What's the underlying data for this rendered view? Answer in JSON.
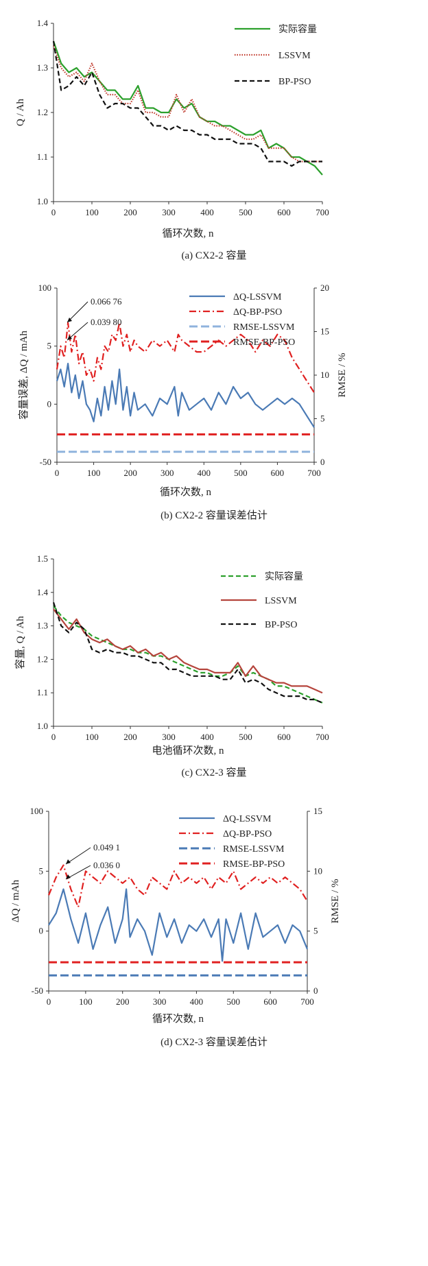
{
  "chart_data": [
    {
      "id": "a",
      "type": "line",
      "caption": "(a)  CX2-2 容量",
      "ylabel": "Q / Ah",
      "xlabel": "循环次数, n",
      "xlim": [
        0,
        700
      ],
      "ylim": [
        1.0,
        1.4
      ],
      "xticks": [
        "0",
        "100",
        "200",
        "300",
        "400",
        "500",
        "600",
        "700"
      ],
      "yticks": [
        "1.0",
        "1.1",
        "1.2",
        "1.3",
        "1.4"
      ],
      "series": [
        {
          "name": "实际容量",
          "color": "#2ca02c",
          "style": "solid",
          "x": [
            0,
            20,
            40,
            60,
            80,
            100,
            120,
            140,
            160,
            180,
            200,
            220,
            240,
            260,
            280,
            300,
            320,
            340,
            360,
            380,
            400,
            420,
            440,
            460,
            480,
            500,
            520,
            540,
            560,
            580,
            600,
            620,
            640,
            660,
            680,
            700
          ],
          "y": [
            1.36,
            1.31,
            1.29,
            1.3,
            1.28,
            1.29,
            1.27,
            1.25,
            1.25,
            1.23,
            1.23,
            1.26,
            1.21,
            1.21,
            1.2,
            1.2,
            1.23,
            1.21,
            1.22,
            1.19,
            1.18,
            1.18,
            1.17,
            1.17,
            1.16,
            1.15,
            1.15,
            1.16,
            1.12,
            1.13,
            1.12,
            1.1,
            1.1,
            1.09,
            1.08,
            1.06
          ]
        },
        {
          "name": "LSSVM",
          "color": "#c0392b",
          "style": "dotted",
          "x": [
            0,
            20,
            40,
            60,
            80,
            100,
            120,
            140,
            160,
            180,
            200,
            220,
            240,
            260,
            280,
            300,
            320,
            340,
            360,
            380,
            400,
            420,
            440,
            460,
            480,
            500,
            520,
            540,
            560,
            580,
            600,
            620,
            640,
            660,
            680,
            700
          ],
          "y": [
            1.35,
            1.3,
            1.28,
            1.29,
            1.27,
            1.31,
            1.27,
            1.24,
            1.24,
            1.22,
            1.22,
            1.25,
            1.2,
            1.2,
            1.19,
            1.19,
            1.24,
            1.2,
            1.23,
            1.19,
            1.18,
            1.17,
            1.17,
            1.16,
            1.15,
            1.14,
            1.14,
            1.15,
            1.12,
            1.12,
            1.12,
            1.1,
            1.09,
            1.09,
            1.09,
            1.09
          ]
        },
        {
          "name": "BP-PSO",
          "color": "#111111",
          "style": "dashed",
          "x": [
            0,
            20,
            40,
            60,
            80,
            100,
            120,
            140,
            160,
            180,
            200,
            220,
            240,
            260,
            280,
            300,
            320,
            340,
            360,
            380,
            400,
            420,
            440,
            460,
            480,
            500,
            520,
            540,
            560,
            580,
            600,
            620,
            640,
            660,
            680,
            700
          ],
          "y": [
            1.36,
            1.25,
            1.26,
            1.28,
            1.26,
            1.29,
            1.24,
            1.21,
            1.22,
            1.22,
            1.21,
            1.21,
            1.19,
            1.17,
            1.17,
            1.16,
            1.17,
            1.16,
            1.16,
            1.15,
            1.15,
            1.14,
            1.14,
            1.14,
            1.13,
            1.13,
            1.13,
            1.12,
            1.09,
            1.09,
            1.09,
            1.08,
            1.09,
            1.09,
            1.09,
            1.09
          ]
        }
      ]
    },
    {
      "id": "b",
      "type": "line",
      "caption": "(b)  CX2-2 容量误差估计",
      "ylabel": "容量误差, ΔQ / mAh",
      "y2label": "RMSE / %",
      "xlabel": "循环次数, n",
      "xlim": [
        0,
        700
      ],
      "ylim": [
        -50,
        100
      ],
      "y2lim": [
        0,
        20
      ],
      "xticks": [
        "0",
        "100",
        "200",
        "300",
        "400",
        "500",
        "600",
        "700"
      ],
      "yticks": [
        "-50",
        "0",
        "5",
        "100"
      ],
      "y2ticks": [
        "0",
        "5",
        "10",
        "15",
        "20"
      ],
      "annotations": [
        "0.066 76",
        "0.039 80"
      ],
      "series": [
        {
          "name": "ΔQ-LSSVM",
          "color": "#4a7ab5",
          "style": "solid",
          "axis": "left",
          "x": [
            0,
            10,
            20,
            30,
            40,
            50,
            60,
            70,
            80,
            90,
            100,
            110,
            120,
            130,
            140,
            150,
            160,
            170,
            180,
            190,
            200,
            210,
            220,
            240,
            260,
            280,
            300,
            320,
            330,
            340,
            360,
            380,
            400,
            420,
            440,
            460,
            480,
            500,
            520,
            540,
            560,
            580,
            600,
            620,
            640,
            660,
            680,
            700
          ],
          "y": [
            20,
            30,
            15,
            35,
            10,
            25,
            5,
            20,
            0,
            -5,
            -15,
            5,
            -10,
            15,
            -5,
            20,
            0,
            30,
            -5,
            15,
            -10,
            10,
            -5,
            0,
            -10,
            5,
            0,
            15,
            -10,
            10,
            -5,
            0,
            5,
            -5,
            10,
            0,
            15,
            5,
            10,
            0,
            -5,
            0,
            5,
            0,
            5,
            0,
            -10,
            -20
          ]
        },
        {
          "name": "ΔQ-BP-PSO",
          "color": "#e02020",
          "style": "dashdot",
          "axis": "left",
          "x": [
            0,
            10,
            20,
            30,
            40,
            50,
            60,
            70,
            80,
            90,
            100,
            110,
            120,
            130,
            140,
            150,
            160,
            170,
            180,
            190,
            200,
            210,
            220,
            240,
            260,
            280,
            300,
            320,
            330,
            340,
            360,
            380,
            400,
            420,
            440,
            460,
            480,
            500,
            520,
            540,
            560,
            580,
            600,
            620,
            640,
            660,
            680,
            700
          ],
          "y": [
            30,
            50,
            40,
            70,
            45,
            60,
            35,
            45,
            25,
            30,
            20,
            40,
            30,
            50,
            45,
            60,
            55,
            70,
            50,
            60,
            45,
            55,
            50,
            45,
            55,
            50,
            55,
            45,
            60,
            55,
            50,
            45,
            45,
            50,
            55,
            50,
            55,
            60,
            55,
            45,
            55,
            50,
            60,
            55,
            40,
            30,
            20,
            10
          ]
        },
        {
          "name": "RMSE-LSSVM",
          "color": "#8fb3dd",
          "style": "longdash",
          "axis": "right",
          "x": [
            0,
            700
          ],
          "y": [
            1.2,
            1.2
          ]
        },
        {
          "name": "RMSE-BP-PSO",
          "color": "#e02020",
          "style": "longdash",
          "axis": "right",
          "x": [
            0,
            700
          ],
          "y": [
            3.2,
            3.2
          ]
        }
      ]
    },
    {
      "id": "c",
      "type": "line",
      "caption": "(c)  CX2-3 容量",
      "ylabel": "容量, Q / Ah",
      "xlabel": "电池循环次数, n",
      "xlim": [
        0,
        700
      ],
      "ylim": [
        1.0,
        1.5
      ],
      "xticks": [
        "0",
        "100",
        "200",
        "300",
        "400",
        "500",
        "600",
        "700"
      ],
      "yticks": [
        "1.0",
        "1.1",
        "1.2",
        "1.3",
        "1.4",
        "1.5"
      ],
      "series": [
        {
          "name": "实际容量",
          "color": "#2ca02c",
          "style": "dashed",
          "x": [
            0,
            20,
            40,
            60,
            80,
            100,
            120,
            140,
            160,
            180,
            200,
            220,
            240,
            260,
            280,
            300,
            320,
            340,
            360,
            380,
            400,
            420,
            440,
            460,
            480,
            500,
            520,
            540,
            560,
            580,
            600,
            620,
            640,
            660,
            680,
            700
          ],
          "y": [
            1.36,
            1.33,
            1.31,
            1.3,
            1.29,
            1.27,
            1.26,
            1.25,
            1.24,
            1.23,
            1.23,
            1.22,
            1.22,
            1.21,
            1.21,
            1.2,
            1.19,
            1.18,
            1.17,
            1.16,
            1.16,
            1.15,
            1.15,
            1.16,
            1.18,
            1.15,
            1.16,
            1.15,
            1.14,
            1.12,
            1.12,
            1.11,
            1.1,
            1.09,
            1.08,
            1.07
          ]
        },
        {
          "name": "LSSVM",
          "color": "#b5443c",
          "style": "solid",
          "x": [
            0,
            20,
            40,
            60,
            80,
            100,
            120,
            140,
            160,
            180,
            200,
            220,
            240,
            260,
            280,
            300,
            320,
            340,
            360,
            380,
            400,
            420,
            440,
            460,
            480,
            500,
            520,
            540,
            560,
            580,
            600,
            620,
            640,
            660,
            680,
            700
          ],
          "y": [
            1.35,
            1.32,
            1.29,
            1.32,
            1.28,
            1.26,
            1.25,
            1.26,
            1.24,
            1.23,
            1.24,
            1.22,
            1.23,
            1.21,
            1.22,
            1.2,
            1.21,
            1.19,
            1.18,
            1.17,
            1.17,
            1.16,
            1.16,
            1.16,
            1.19,
            1.15,
            1.18,
            1.15,
            1.14,
            1.13,
            1.13,
            1.12,
            1.12,
            1.12,
            1.11,
            1.1
          ]
        },
        {
          "name": "BP-PSO",
          "color": "#111111",
          "style": "dashed",
          "x": [
            0,
            20,
            40,
            60,
            80,
            100,
            120,
            140,
            160,
            180,
            200,
            220,
            240,
            260,
            280,
            300,
            320,
            340,
            360,
            380,
            400,
            420,
            440,
            460,
            480,
            500,
            520,
            540,
            560,
            580,
            600,
            620,
            640,
            660,
            680,
            700
          ],
          "y": [
            1.37,
            1.3,
            1.28,
            1.31,
            1.29,
            1.23,
            1.22,
            1.23,
            1.22,
            1.22,
            1.21,
            1.21,
            1.2,
            1.19,
            1.19,
            1.17,
            1.17,
            1.16,
            1.15,
            1.15,
            1.15,
            1.15,
            1.14,
            1.14,
            1.17,
            1.13,
            1.14,
            1.13,
            1.11,
            1.1,
            1.09,
            1.09,
            1.09,
            1.08,
            1.08,
            1.07
          ]
        }
      ]
    },
    {
      "id": "d",
      "type": "line",
      "caption": "(d)  CX2-3 容量误差估计",
      "ylabel": "ΔQ / mAh",
      "y2label": "RMSE / %",
      "xlabel": "循环次数, n",
      "xlim": [
        0,
        700
      ],
      "ylim": [
        -50,
        100
      ],
      "y2lim": [
        0,
        15
      ],
      "xticks": [
        "0",
        "100",
        "200",
        "300",
        "400",
        "500",
        "600",
        "700"
      ],
      "yticks": [
        "-50",
        "0",
        "5",
        "100"
      ],
      "y2ticks": [
        "0",
        "5",
        "10",
        "15"
      ],
      "annotations": [
        "0.049 1",
        "0.036 0"
      ],
      "series": [
        {
          "name": "ΔQ-LSSVM",
          "color": "#4a7ab5",
          "style": "solid",
          "axis": "left",
          "x": [
            0,
            20,
            40,
            60,
            80,
            100,
            120,
            140,
            160,
            180,
            200,
            210,
            220,
            240,
            260,
            280,
            300,
            320,
            340,
            360,
            380,
            400,
            420,
            440,
            460,
            470,
            480,
            500,
            520,
            540,
            560,
            580,
            600,
            620,
            640,
            660,
            680,
            700
          ],
          "y": [
            5,
            15,
            35,
            10,
            -10,
            15,
            -15,
            5,
            20,
            -10,
            10,
            35,
            -5,
            10,
            0,
            -20,
            15,
            -5,
            10,
            -10,
            5,
            0,
            10,
            -5,
            10,
            -25,
            10,
            -10,
            15,
            -15,
            15,
            -5,
            0,
            5,
            -10,
            5,
            0,
            -15
          ]
        },
        {
          "name": "ΔQ-BP-PSO",
          "color": "#e02020",
          "style": "dashdot",
          "axis": "left",
          "x": [
            0,
            20,
            40,
            60,
            80,
            100,
            120,
            140,
            160,
            180,
            200,
            220,
            240,
            260,
            280,
            300,
            320,
            340,
            360,
            380,
            400,
            420,
            440,
            460,
            480,
            500,
            520,
            540,
            560,
            580,
            600,
            620,
            640,
            660,
            680,
            700
          ],
          "y": [
            30,
            45,
            55,
            35,
            20,
            50,
            45,
            40,
            50,
            45,
            40,
            45,
            35,
            30,
            45,
            40,
            35,
            50,
            40,
            45,
            40,
            45,
            35,
            45,
            40,
            50,
            35,
            40,
            45,
            40,
            45,
            40,
            45,
            40,
            35,
            25
          ]
        },
        {
          "name": "RMSE-LSSVM",
          "color": "#4a7ab5",
          "style": "longdash",
          "axis": "right",
          "x": [
            0,
            700
          ],
          "y": [
            1.3,
            1.3
          ]
        },
        {
          "name": "RMSE-BP-PSO",
          "color": "#e02020",
          "style": "longdash",
          "axis": "right",
          "x": [
            0,
            700
          ],
          "y": [
            2.4,
            2.4
          ]
        }
      ]
    }
  ]
}
